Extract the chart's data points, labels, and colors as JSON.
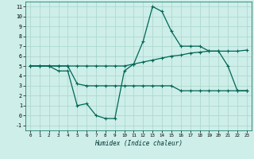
{
  "xlabel": "Humidex (Indice chaleur)",
  "xlim": [
    -0.5,
    23.5
  ],
  "ylim": [
    -1.5,
    11.5
  ],
  "xtick_vals": [
    0,
    1,
    2,
    3,
    4,
    5,
    6,
    7,
    8,
    9,
    10,
    11,
    12,
    13,
    14,
    15,
    16,
    17,
    18,
    19,
    20,
    21,
    22,
    23
  ],
  "ytick_vals": [
    -1,
    0,
    1,
    2,
    3,
    4,
    5,
    6,
    7,
    8,
    9,
    10,
    11
  ],
  "bg_color": "#cdeee9",
  "line_color": "#006655",
  "grid_color": "#aad5cc",
  "line1_x": [
    0,
    1,
    2,
    3,
    4,
    5,
    6,
    7,
    8,
    9,
    10,
    11,
    12,
    13,
    14,
    15,
    16,
    17,
    18,
    19,
    20,
    21,
    22,
    23
  ],
  "line1_y": [
    5.0,
    5.0,
    5.0,
    4.5,
    4.5,
    1.0,
    1.2,
    0.0,
    -0.3,
    -0.3,
    4.5,
    5.2,
    7.5,
    11.0,
    10.5,
    8.5,
    7.0,
    7.0,
    7.0,
    6.5,
    6.5,
    5.0,
    2.5,
    2.5
  ],
  "line2_x": [
    0,
    1,
    2,
    3,
    4,
    5,
    6,
    7,
    8,
    9,
    10,
    11,
    12,
    13,
    14,
    15,
    16,
    17,
    18,
    19,
    20,
    21,
    22,
    23
  ],
  "line2_y": [
    5.0,
    5.0,
    5.0,
    5.0,
    5.0,
    5.0,
    5.0,
    5.0,
    5.0,
    5.0,
    5.0,
    5.2,
    5.4,
    5.6,
    5.8,
    6.0,
    6.1,
    6.3,
    6.4,
    6.5,
    6.5,
    6.5,
    6.5,
    6.6
  ],
  "line3_x": [
    0,
    1,
    2,
    3,
    4,
    5,
    6,
    7,
    8,
    9,
    10,
    11,
    12,
    13,
    14,
    15,
    16,
    17,
    18,
    19,
    20,
    21,
    22,
    23
  ],
  "line3_y": [
    5.0,
    5.0,
    5.0,
    5.0,
    5.0,
    3.2,
    3.0,
    3.0,
    3.0,
    3.0,
    3.0,
    3.0,
    3.0,
    3.0,
    3.0,
    3.0,
    2.5,
    2.5,
    2.5,
    2.5,
    2.5,
    2.5,
    2.5,
    2.5
  ]
}
